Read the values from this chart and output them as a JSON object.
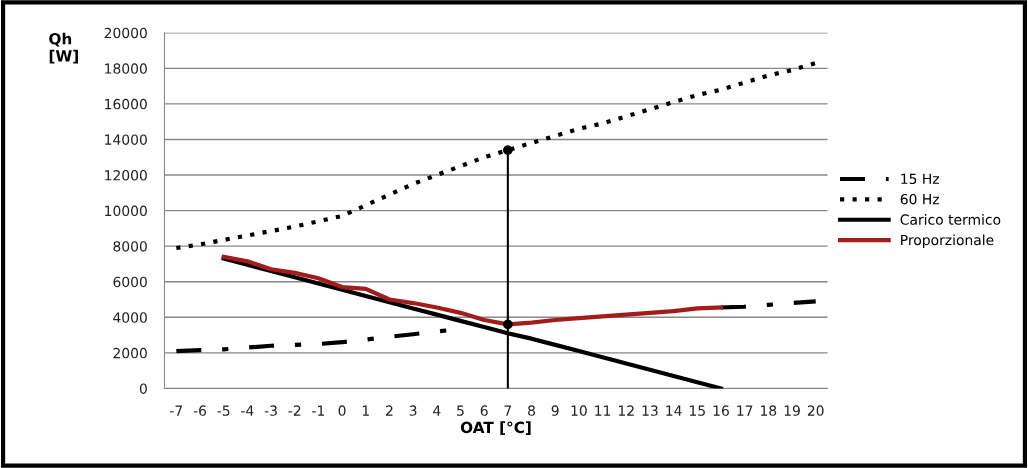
{
  "chart_data": {
    "type": "line",
    "xlabel": "OAT [°C]",
    "ylabel": "Qh\n[W]",
    "categories": [
      "-7",
      "-6",
      "-5",
      "-4",
      "-3",
      "-2",
      "-1",
      "0",
      "1",
      "2",
      "3",
      "4",
      "5",
      "6",
      "7",
      "8",
      "9",
      "10",
      "11",
      "12",
      "13",
      "14",
      "15",
      "16",
      "17",
      "18",
      "19",
      "20"
    ],
    "ylim": [
      0,
      20000
    ],
    "yticks": [
      0,
      2000,
      4000,
      6000,
      8000,
      10000,
      12000,
      14000,
      16000,
      18000,
      20000
    ],
    "grid": "y",
    "legend": "right",
    "marker": "none",
    "series": [
      {
        "name": "15 Hz",
        "color": "#000000",
        "line_style": "dashdot",
        "values": [
          2100,
          2150,
          2200,
          2300,
          2400,
          2450,
          2500,
          2600,
          2750,
          2900,
          3050,
          3200,
          3350,
          null,
          null,
          null,
          null,
          null,
          null,
          null,
          null,
          null,
          null,
          4550,
          4600,
          4700,
          4800,
          4900
        ]
      },
      {
        "name": "60 Hz",
        "color": "#000000",
        "line_style": "dotted",
        "values": [
          7900,
          8100,
          8350,
          8600,
          8850,
          9100,
          9400,
          9700,
          10300,
          10900,
          11500,
          12000,
          12500,
          13000,
          13400,
          13800,
          14200,
          14600,
          14900,
          15300,
          15700,
          16100,
          16500,
          16800,
          17200,
          17600,
          17900,
          18300
        ]
      },
      {
        "name": "Carico termico",
        "color": "#000000",
        "line_style": "solid",
        "values": [
          null,
          null,
          7300,
          6950,
          6600,
          6250,
          5900,
          5550,
          5200,
          4850,
          4500,
          4150,
          3800,
          3450,
          3100,
          2800,
          2450,
          2100,
          1750,
          1400,
          1050,
          700,
          350,
          0,
          null,
          null,
          null,
          null
        ]
      },
      {
        "name": "Proporzionale",
        "color": "#a31c1c",
        "line_style": "solid",
        "values": [
          null,
          null,
          7400,
          7150,
          6700,
          6500,
          6200,
          5700,
          5600,
          5000,
          4800,
          4550,
          4250,
          3850,
          3600,
          3700,
          3850,
          3950,
          4050,
          4150,
          4250,
          4350,
          4500,
          4550,
          null,
          null,
          null,
          null
        ]
      },
      {
        "type": "line",
        "color": "#000000",
        "line_style": "solid",
        "x": [
          "7",
          "7"
        ],
        "values": [
          0,
          13400
        ]
      },
      {
        "type": "scatter",
        "color": "#000000",
        "marker": "circle",
        "x": [
          "7",
          "7"
        ],
        "values": [
          13400,
          3600
        ]
      }
    ]
  }
}
